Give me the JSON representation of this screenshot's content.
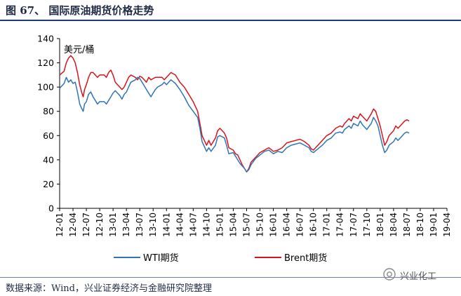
{
  "header": {
    "title": "图 67、 国际原油期货价格走势"
  },
  "footer": {
    "source": "数据来源：Wind，兴业证券经济与金融研究院整理",
    "watermark": "兴业化工"
  },
  "chart_data": {
    "type": "line",
    "unit_label": "美元/桶",
    "ylim": [
      0,
      140
    ],
    "y_ticks": [
      0,
      20,
      40,
      60,
      80,
      100,
      120,
      140
    ],
    "x_tick_labels": [
      "12-01",
      "12-04",
      "12-07",
      "12-10",
      "13-01",
      "13-04",
      "13-07",
      "13-10",
      "14-01",
      "14-04",
      "14-07",
      "14-10",
      "15-01",
      "15-04",
      "15-07",
      "15-10",
      "16-01",
      "16-04",
      "16-07",
      "16-10",
      "17-01",
      "17-04",
      "17-07",
      "17-10",
      "18-01",
      "18-04",
      "18-07",
      "18-10",
      "19-01",
      "19-04"
    ],
    "grid": false,
    "legend": "bottom",
    "series": [
      {
        "name": "WTI期货",
        "color": "#2e75b6",
        "points": [
          [
            0,
            99
          ],
          [
            1,
            103
          ],
          [
            1.5,
            108
          ],
          [
            2,
            104
          ],
          [
            2.5,
            106
          ],
          [
            3,
            103
          ],
          [
            3.5,
            104
          ],
          [
            4,
            96
          ],
          [
            4.5,
            86
          ],
          [
            5,
            82
          ],
          [
            5.3,
            80
          ],
          [
            5.6,
            86
          ],
          [
            6,
            88
          ],
          [
            6.5,
            94
          ],
          [
            7,
            96
          ],
          [
            7.5,
            92
          ],
          [
            8,
            89
          ],
          [
            8.5,
            86
          ],
          [
            9,
            88
          ],
          [
            10,
            88
          ],
          [
            10.5,
            86
          ],
          [
            11,
            89
          ],
          [
            11.5,
            92
          ],
          [
            12,
            95
          ],
          [
            12.5,
            97
          ],
          [
            13,
            95
          ],
          [
            13.5,
            93
          ],
          [
            14,
            90
          ],
          [
            14.5,
            94
          ],
          [
            15,
            96
          ],
          [
            15.5,
            100
          ],
          [
            16,
            104
          ],
          [
            17,
            106
          ],
          [
            17.5,
            108
          ],
          [
            18,
            107
          ],
          [
            18.5,
            104
          ],
          [
            19,
            101
          ],
          [
            19.5,
            98
          ],
          [
            20,
            95
          ],
          [
            20.5,
            92
          ],
          [
            21,
            95
          ],
          [
            21.5,
            98
          ],
          [
            22,
            100
          ],
          [
            23,
            102
          ],
          [
            23.5,
            104
          ],
          [
            24,
            102
          ],
          [
            24.5,
            104
          ],
          [
            25,
            106
          ],
          [
            26,
            103
          ],
          [
            27,
            98
          ],
          [
            28,
            92
          ],
          [
            29,
            85
          ],
          [
            30,
            80
          ],
          [
            31,
            75
          ],
          [
            31.5,
            66
          ],
          [
            32,
            55
          ],
          [
            33,
            47
          ],
          [
            33.5,
            50
          ],
          [
            34,
            47
          ],
          [
            35,
            52
          ],
          [
            35.5,
            59
          ],
          [
            36,
            60
          ],
          [
            37,
            58
          ],
          [
            37.5,
            52
          ],
          [
            38,
            45
          ],
          [
            39,
            46
          ],
          [
            39.5,
            43
          ],
          [
            40,
            40
          ],
          [
            40.5,
            37
          ],
          [
            41,
            35
          ],
          [
            41.5,
            33
          ],
          [
            42,
            30
          ],
          [
            42.5,
            32
          ],
          [
            43,
            36
          ],
          [
            44,
            41
          ],
          [
            45,
            44
          ],
          [
            46,
            47
          ],
          [
            47,
            48
          ],
          [
            48,
            45
          ],
          [
            49,
            47
          ],
          [
            50,
            46
          ],
          [
            51,
            50
          ],
          [
            52,
            52
          ],
          [
            53,
            53
          ],
          [
            54,
            54
          ],
          [
            55,
            52
          ],
          [
            56,
            50
          ],
          [
            56.5,
            47
          ],
          [
            57,
            46
          ],
          [
            58,
            49
          ],
          [
            59,
            52
          ],
          [
            60,
            56
          ],
          [
            61,
            58
          ],
          [
            62,
            62
          ],
          [
            63,
            63
          ],
          [
            63.5,
            62
          ],
          [
            64,
            65
          ],
          [
            65,
            68
          ],
          [
            65.5,
            66
          ],
          [
            66,
            70
          ],
          [
            67,
            68
          ],
          [
            67.5,
            72
          ],
          [
            68,
            69
          ],
          [
            69,
            65
          ],
          [
            70,
            70
          ],
          [
            70.5,
            75
          ],
          [
            71,
            72
          ],
          [
            71.5,
            68
          ],
          [
            72,
            60
          ],
          [
            72.5,
            52
          ],
          [
            73,
            46
          ],
          [
            73.5,
            48
          ],
          [
            74,
            52
          ],
          [
            75,
            55
          ],
          [
            75.5,
            58
          ],
          [
            76,
            56
          ],
          [
            77,
            60
          ],
          [
            77.5,
            62
          ],
          [
            78,
            63
          ],
          [
            78.5,
            62
          ]
        ]
      },
      {
        "name": "Brent期货",
        "color": "#d7141b",
        "points": [
          [
            0,
            110
          ],
          [
            1,
            113
          ],
          [
            1.5,
            120
          ],
          [
            2,
            124
          ],
          [
            2.5,
            126
          ],
          [
            3,
            124
          ],
          [
            3.5,
            120
          ],
          [
            4,
            112
          ],
          [
            4.5,
            102
          ],
          [
            5,
            95
          ],
          [
            5.3,
            92
          ],
          [
            5.6,
            98
          ],
          [
            6,
            102
          ],
          [
            6.5,
            108
          ],
          [
            7,
            112
          ],
          [
            7.5,
            112
          ],
          [
            8,
            110
          ],
          [
            8.5,
            108
          ],
          [
            9,
            110
          ],
          [
            10,
            110
          ],
          [
            10.5,
            108
          ],
          [
            11,
            112
          ],
          [
            11.5,
            114
          ],
          [
            12,
            110
          ],
          [
            12.5,
            104
          ],
          [
            13,
            102
          ],
          [
            13.5,
            100
          ],
          [
            14,
            98
          ],
          [
            14.5,
            100
          ],
          [
            15,
            104
          ],
          [
            15.5,
            108
          ],
          [
            16,
            110
          ],
          [
            17,
            108
          ],
          [
            17.5,
            106
          ],
          [
            18,
            109
          ],
          [
            18.5,
            108
          ],
          [
            19,
            106
          ],
          [
            19.5,
            104
          ],
          [
            20,
            108
          ],
          [
            20.5,
            106
          ],
          [
            21,
            107
          ],
          [
            21.5,
            108
          ],
          [
            22,
            108
          ],
          [
            23,
            108
          ],
          [
            23.5,
            106
          ],
          [
            24,
            108
          ],
          [
            24.5,
            110
          ],
          [
            25,
            112
          ],
          [
            26,
            110
          ],
          [
            27,
            104
          ],
          [
            28,
            100
          ],
          [
            29,
            94
          ],
          [
            30,
            88
          ],
          [
            31,
            80
          ],
          [
            31.5,
            70
          ],
          [
            32,
            60
          ],
          [
            33,
            52
          ],
          [
            33.5,
            56
          ],
          [
            34,
            52
          ],
          [
            35,
            58
          ],
          [
            35.5,
            64
          ],
          [
            36,
            66
          ],
          [
            37,
            62
          ],
          [
            37.5,
            58
          ],
          [
            38,
            50
          ],
          [
            39,
            48
          ],
          [
            39.5,
            45
          ],
          [
            40,
            44
          ],
          [
            40.5,
            40
          ],
          [
            41,
            36
          ],
          [
            41.5,
            33
          ],
          [
            42,
            30
          ],
          [
            42.5,
            33
          ],
          [
            43,
            38
          ],
          [
            44,
            42
          ],
          [
            45,
            46
          ],
          [
            46,
            48
          ],
          [
            47,
            50
          ],
          [
            48,
            47
          ],
          [
            49,
            48
          ],
          [
            50,
            50
          ],
          [
            51,
            54
          ],
          [
            52,
            55
          ],
          [
            53,
            56
          ],
          [
            54,
            57
          ],
          [
            55,
            55
          ],
          [
            56,
            52
          ],
          [
            56.5,
            49
          ],
          [
            57,
            48
          ],
          [
            58,
            52
          ],
          [
            59,
            56
          ],
          [
            60,
            60
          ],
          [
            61,
            62
          ],
          [
            62,
            66
          ],
          [
            63,
            68
          ],
          [
            63.5,
            67
          ],
          [
            64,
            70
          ],
          [
            65,
            74
          ],
          [
            65.5,
            72
          ],
          [
            66,
            76
          ],
          [
            67,
            74
          ],
          [
            67.5,
            78
          ],
          [
            68,
            76
          ],
          [
            69,
            72
          ],
          [
            70,
            78
          ],
          [
            70.5,
            82
          ],
          [
            71,
            80
          ],
          [
            71.5,
            74
          ],
          [
            72,
            68
          ],
          [
            72.5,
            60
          ],
          [
            73,
            52
          ],
          [
            73.5,
            55
          ],
          [
            74,
            60
          ],
          [
            75,
            64
          ],
          [
            75.5,
            68
          ],
          [
            76,
            66
          ],
          [
            77,
            70
          ],
          [
            77.5,
            72
          ],
          [
            78,
            73
          ],
          [
            78.5,
            72
          ]
        ]
      }
    ]
  }
}
